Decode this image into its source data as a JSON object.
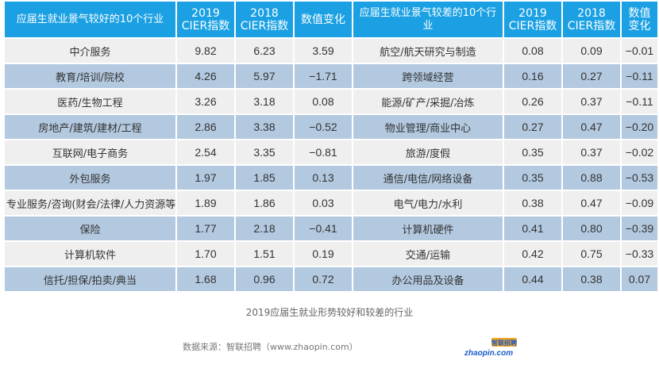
{
  "headers": {
    "good_industry": "应届生就业景气较好的10个行业",
    "good_2019": "2019\nCIER指数",
    "good_2018": "2018\nCIER指数",
    "good_change": "数值变化",
    "bad_industry": "应届生就业景气较差的10个行业",
    "bad_2019": "2019\nCIER指数",
    "bad_2018": "2018\nCIER指数",
    "bad_change": "数值变化"
  },
  "rows": [
    {
      "good_name": "中介服务",
      "good_2019": "9.82",
      "good_2018": "6.23",
      "good_change": "3.59",
      "bad_name": "航空/航天研究与制造",
      "bad_2019": "0.08",
      "bad_2018": "0.09",
      "bad_change": "−0.01"
    },
    {
      "good_name": "教育/培训/院校",
      "good_2019": "4.26",
      "good_2018": "5.97",
      "good_change": "−1.71",
      "bad_name": "跨领域经营",
      "bad_2019": "0.16",
      "bad_2018": "0.27",
      "bad_change": "−0.11"
    },
    {
      "good_name": "医药/生物工程",
      "good_2019": "3.26",
      "good_2018": "3.18",
      "good_change": "0.08",
      "bad_name": "能源/矿产/采掘/冶炼",
      "bad_2019": "0.26",
      "bad_2018": "0.37",
      "bad_change": "−0.11"
    },
    {
      "good_name": "房地产/建筑/建材/工程",
      "good_2019": "2.86",
      "good_2018": "3.38",
      "good_change": "−0.52",
      "bad_name": "物业管理/商业中心",
      "bad_2019": "0.27",
      "bad_2018": "0.47",
      "bad_change": "−0.20"
    },
    {
      "good_name": "互联网/电子商务",
      "good_2019": "2.54",
      "good_2018": "3.35",
      "good_change": "−0.81",
      "bad_name": "旅游/度假",
      "bad_2019": "0.35",
      "bad_2018": "0.37",
      "bad_change": "−0.02"
    },
    {
      "good_name": "外包服务",
      "good_2019": "1.97",
      "good_2018": "1.85",
      "good_change": "0.13",
      "bad_name": "通信/电信/网络设备",
      "bad_2019": "0.35",
      "bad_2018": "0.88",
      "bad_change": "−0.53"
    },
    {
      "good_name": "专业服务/咨询(财会/法律/人力资源等)",
      "good_2019": "1.89",
      "good_2018": "1.86",
      "good_change": "0.03",
      "bad_name": "电气/电力/水利",
      "bad_2019": "0.38",
      "bad_2018": "0.47",
      "bad_change": "−0.09"
    },
    {
      "good_name": "保险",
      "good_2019": "1.77",
      "good_2018": "2.18",
      "good_change": "−0.41",
      "bad_name": "计算机硬件",
      "bad_2019": "0.41",
      "bad_2018": "0.80",
      "bad_change": "−0.39"
    },
    {
      "good_name": "计算机软件",
      "good_2019": "1.70",
      "good_2018": "1.51",
      "good_change": "0.19",
      "bad_name": "交通/运输",
      "bad_2019": "0.42",
      "bad_2018": "0.75",
      "bad_change": "−0.33"
    },
    {
      "good_name": "信托/担保/拍卖/典当",
      "good_2019": "1.68",
      "good_2018": "0.96",
      "good_change": "0.72",
      "bad_name": "办公用品及设备",
      "bad_2019": "0.44",
      "bad_2018": "0.38",
      "bad_change": "0.07"
    }
  ],
  "caption": "2019应届生就业形势较好和较差的行业",
  "source": "数据来源：智联招聘（www.zhaopin.com）",
  "logo": {
    "top_text": "智联招聘",
    "bottom_text": "zhaopin.com",
    "colors": {
      "blue": "#1a5cc8",
      "orange": "#f5a623"
    }
  },
  "colors": {
    "header": "#1aa0e3",
    "row_light": "#efefef",
    "row_dark": "#b3c9e0"
  }
}
